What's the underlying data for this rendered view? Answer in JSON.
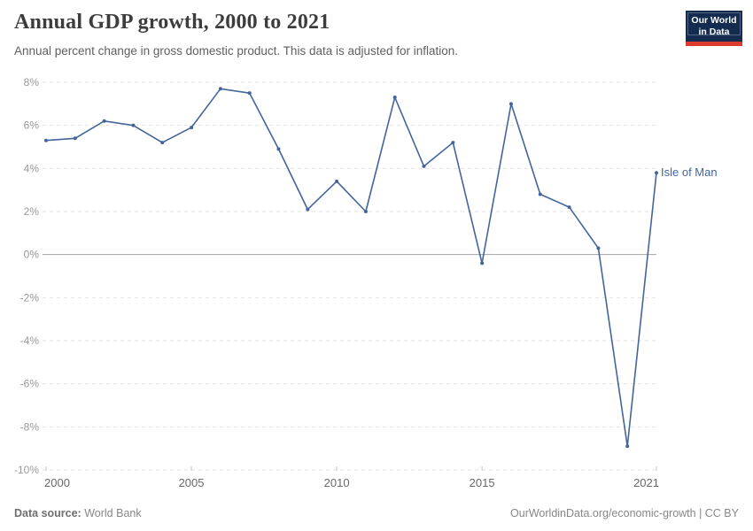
{
  "header": {
    "title": "Annual GDP growth, 2000 to 2021",
    "subtitle": "Annual percent change in gross domestic product. This data is adjusted for inflation."
  },
  "logo": {
    "line1": "Our World",
    "line2": "in Data",
    "bg_color": "#132c4f",
    "bar_color": "#dc3a2f"
  },
  "footer": {
    "source_label": "Data source:",
    "source_value": "World Bank",
    "credit": "OurWorldinData.org/economic-growth | CC BY"
  },
  "colors": {
    "accent": "#44659b",
    "grid": "#e2e2e2",
    "zero_line": "#a3a3a3",
    "axis_tick": "#c4c4c4",
    "y_label": "#999999",
    "x_label": "#686868"
  },
  "chart_data": {
    "type": "line",
    "title": "Annual GDP growth, 2000 to 2021",
    "xlabel": "",
    "ylabel": "",
    "unit": "%",
    "xlim": [
      2000,
      2021
    ],
    "ylim": [
      -10,
      8
    ],
    "xticks": [
      2000,
      2005,
      2010,
      2015,
      2021
    ],
    "yticks": [
      8,
      6,
      4,
      2,
      0,
      -2,
      -4,
      -6,
      -8,
      -10
    ],
    "grid": "horizontal dashed, solid line at 0",
    "legend_position": "end-of-line label",
    "x": [
      2000,
      2001,
      2002,
      2003,
      2004,
      2005,
      2006,
      2007,
      2008,
      2009,
      2010,
      2011,
      2012,
      2013,
      2014,
      2015,
      2016,
      2017,
      2018,
      2019,
      2020,
      2021
    ],
    "series": [
      {
        "name": "Isle of Man",
        "color": "#44659b",
        "values": [
          5.3,
          5.4,
          6.2,
          6.0,
          5.2,
          5.9,
          7.7,
          7.5,
          4.9,
          2.1,
          3.4,
          2.0,
          7.3,
          4.1,
          5.2,
          -0.4,
          7.0,
          2.8,
          2.2,
          0.3,
          -8.9,
          3.8
        ]
      }
    ]
  }
}
